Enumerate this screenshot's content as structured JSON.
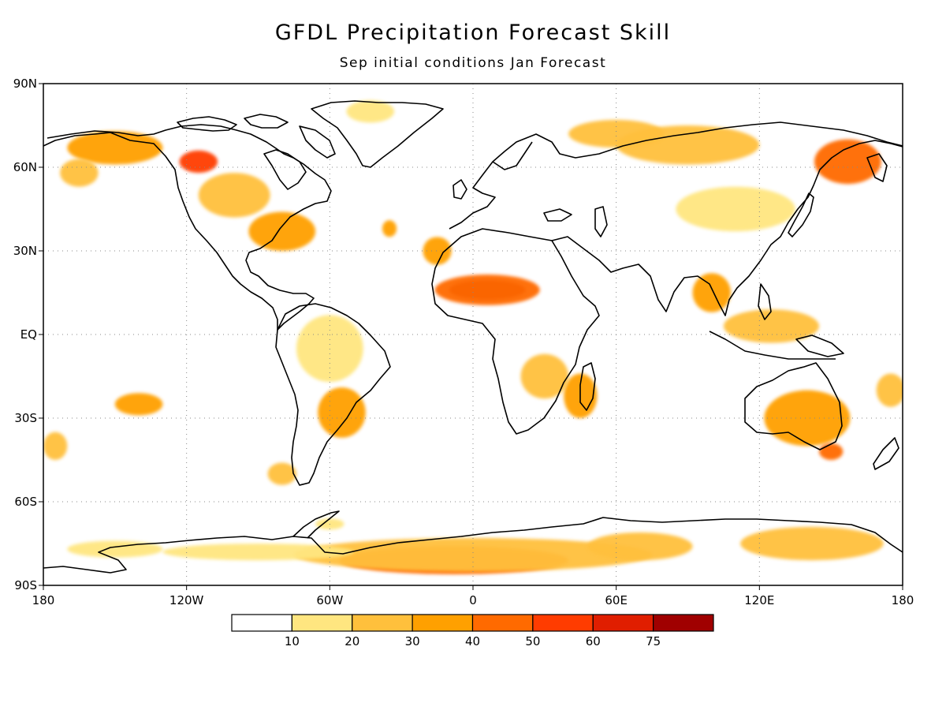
{
  "title": "GFDL Precipitation Forecast Skill",
  "subtitle": "Sep initial conditions  Jan Forecast",
  "map": {
    "lon_range": [
      -180,
      180
    ],
    "lat_range": [
      -90,
      90
    ],
    "grid": true,
    "lat_ticks": [
      {
        "lat": 90,
        "label": "90N"
      },
      {
        "lat": 60,
        "label": "60N"
      },
      {
        "lat": 30,
        "label": "30N"
      },
      {
        "lat": 0,
        "label": "EQ"
      },
      {
        "lat": -30,
        "label": "30S"
      },
      {
        "lat": -60,
        "label": "60S"
      },
      {
        "lat": -90,
        "label": "90S"
      }
    ],
    "lon_ticks": [
      {
        "lon": -180,
        "label": "180"
      },
      {
        "lon": -120,
        "label": "120W"
      },
      {
        "lon": -60,
        "label": "60W"
      },
      {
        "lon": 0,
        "label": "0"
      },
      {
        "lon": 60,
        "label": "60E"
      },
      {
        "lon": 120,
        "label": "120E"
      },
      {
        "lon": 180,
        "label": "180"
      }
    ]
  },
  "colorbar": {
    "colors": [
      "#ffffff",
      "#ffe680",
      "#ffc03c",
      "#ffa000",
      "#ff6a00",
      "#ff3c00",
      "#e01e00",
      "#a00000"
    ],
    "labels": [
      "10",
      "20",
      "30",
      "40",
      "50",
      "60",
      "75"
    ]
  },
  "skill_regions": [
    {
      "lon": -8,
      "lat": -81,
      "rx": 48,
      "ry": 5,
      "level": 4
    },
    {
      "lon": 0,
      "lat": -79,
      "rx": 75,
      "ry": 6,
      "level": 2
    },
    {
      "lon": -90,
      "lat": -78,
      "rx": 40,
      "ry": 3,
      "level": 1
    },
    {
      "lon": 70,
      "lat": -76,
      "rx": 22,
      "ry": 5,
      "level": 2
    },
    {
      "lon": 142,
      "lat": -75,
      "rx": 30,
      "ry": 6,
      "level": 2
    },
    {
      "lon": -150,
      "lat": -77,
      "rx": 20,
      "ry": 3,
      "level": 1
    },
    {
      "lon": 6,
      "lat": 16,
      "rx": 16,
      "ry": 3.5,
      "level": 7
    },
    {
      "lon": 6,
      "lat": 16,
      "rx": 22,
      "ry": 5.5,
      "level": 4
    },
    {
      "lon": 157,
      "lat": 62,
      "rx": 14,
      "ry": 8,
      "level": 4
    },
    {
      "lon": 90,
      "lat": 68,
      "rx": 30,
      "ry": 7,
      "level": 2
    },
    {
      "lon": 60,
      "lat": 72,
      "rx": 20,
      "ry": 5,
      "level": 2
    },
    {
      "lon": -150,
      "lat": 67,
      "rx": 20,
      "ry": 6,
      "level": 3
    },
    {
      "lon": -115,
      "lat": 62,
      "rx": 8,
      "ry": 4,
      "level": 5
    },
    {
      "lon": -80,
      "lat": 37,
      "rx": 14,
      "ry": 7,
      "level": 3
    },
    {
      "lon": -100,
      "lat": 50,
      "rx": 15,
      "ry": 8,
      "level": 2
    },
    {
      "lon": 140,
      "lat": -30,
      "rx": 18,
      "ry": 10,
      "level": 3
    },
    {
      "lon": 150,
      "lat": -42,
      "rx": 5,
      "ry": 3,
      "level": 4
    },
    {
      "lon": -55,
      "lat": -28,
      "rx": 10,
      "ry": 9,
      "level": 3
    },
    {
      "lon": 45,
      "lat": -22,
      "rx": 7,
      "ry": 8,
      "level": 3
    },
    {
      "lon": 30,
      "lat": -15,
      "rx": 10,
      "ry": 8,
      "level": 2
    },
    {
      "lon": 125,
      "lat": 3,
      "rx": 20,
      "ry": 6,
      "level": 2
    },
    {
      "lon": 100,
      "lat": 15,
      "rx": 8,
      "ry": 7,
      "level": 3
    },
    {
      "lon": -140,
      "lat": -25,
      "rx": 10,
      "ry": 4,
      "level": 3
    },
    {
      "lon": -60,
      "lat": -5,
      "rx": 14,
      "ry": 12,
      "level": 1
    },
    {
      "lon": 110,
      "lat": 45,
      "rx": 25,
      "ry": 8,
      "level": 1
    },
    {
      "lon": -43,
      "lat": 80,
      "rx": 10,
      "ry": 4,
      "level": 1
    },
    {
      "lon": -165,
      "lat": 58,
      "rx": 8,
      "ry": 5,
      "level": 2
    },
    {
      "lon": -35,
      "lat": 38,
      "rx": 3,
      "ry": 3,
      "level": 3
    },
    {
      "lon": -15,
      "lat": 30,
      "rx": 6,
      "ry": 5,
      "level": 3
    },
    {
      "lon": -175,
      "lat": -40,
      "rx": 5,
      "ry": 5,
      "level": 2
    },
    {
      "lon": 175,
      "lat": -20,
      "rx": 6,
      "ry": 6,
      "level": 2
    },
    {
      "lon": -80,
      "lat": -50,
      "rx": 6,
      "ry": 4,
      "level": 2
    },
    {
      "lon": -60,
      "lat": -68,
      "rx": 6,
      "ry": 2,
      "level": 1
    }
  ]
}
